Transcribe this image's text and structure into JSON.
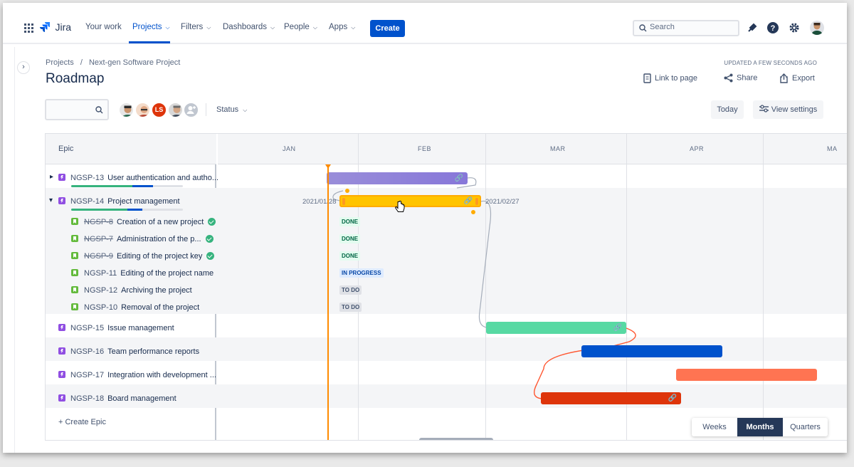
{
  "nav": {
    "logo_text": "Jira",
    "links": [
      "Your work",
      "Projects",
      "Filters",
      "Dashboards",
      "People",
      "Apps"
    ],
    "create_label": "Create",
    "search_placeholder": "Search"
  },
  "header": {
    "breadcrumb_root": "Projects",
    "breadcrumb_sep": "/",
    "breadcrumb_project": "Next-gen Software Project",
    "title": "Roadmap",
    "updated": "UPDATED A FEW SECONDS AGO",
    "link_to_page": "Link to page",
    "share": "Share",
    "export": "Export"
  },
  "filters": {
    "avatar_initials": "LS",
    "status_label": "Status",
    "today_label": "Today",
    "view_settings_label": "View settings"
  },
  "roadmap": {
    "epic_column_header": "Epic",
    "months": [
      "JAN",
      "FEB",
      "MAR",
      "APR",
      "MA"
    ],
    "epics": [
      {
        "key": "NGSP-13",
        "title": "User authentication and autho...",
        "progress_done": 0.55,
        "progress_in_progress": 0.18
      },
      {
        "key": "NGSP-14",
        "title": "Project management",
        "progress_done": 0.5,
        "progress_in_progress": 0.14,
        "start_label": "2021/01/28",
        "end_label": "2021/02/27"
      },
      {
        "key": "NGSP-15",
        "title": "Issue management"
      },
      {
        "key": "NGSP-16",
        "title": "Team performance reports"
      },
      {
        "key": "NGSP-17",
        "title": "Integration with development ..."
      },
      {
        "key": "NGSP-18",
        "title": "Board management"
      }
    ],
    "issues": [
      {
        "key": "NGSP-8",
        "title": "Creation of a new project",
        "status": "DONE"
      },
      {
        "key": "NGSP-7",
        "title": "Administration of the p...",
        "status": "DONE"
      },
      {
        "key": "NGSP-9",
        "title": "Editing of the project key",
        "status": "DONE"
      },
      {
        "key": "NGSP-11",
        "title": "Editing of the project name",
        "status": "IN PROGRESS"
      },
      {
        "key": "NGSP-12",
        "title": "Archiving the project",
        "status": "TO DO"
      },
      {
        "key": "NGSP-10",
        "title": "Removal of the project",
        "status": "TO DO"
      }
    ],
    "create_epic": "+ Create Epic"
  },
  "zoom": {
    "options": [
      "Weeks",
      "Months",
      "Quarters"
    ],
    "selected": "Months"
  },
  "colors": {
    "brand": "#0052cc",
    "epic13": "#8777d9",
    "epic14": "#ffc400",
    "epic15": "#57d9a3",
    "epic16": "#0052cc",
    "epic17": "#ff7452",
    "epic18": "#de350b",
    "today": "#ff8b00"
  }
}
